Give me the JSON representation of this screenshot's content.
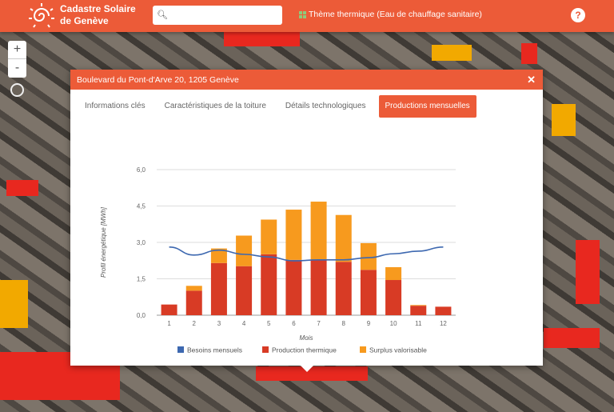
{
  "header": {
    "title_line1": "Cadastre Solaire",
    "title_line2": "de Genève",
    "search_placeholder": "",
    "theme_label": "Thème thermique (Eau de chauffage sanitaire)",
    "help_label": "?"
  },
  "map_controls": {
    "zoom_in": "+",
    "zoom_out": "-"
  },
  "modal": {
    "title": "Boulevard du Pont-d'Arve 20, 1205 Genève",
    "close": "✕",
    "tabs": [
      {
        "label": "Informations clés",
        "active": false
      },
      {
        "label": "Caractéristiques de la toiture",
        "active": false
      },
      {
        "label": "Détails technologiques",
        "active": false
      },
      {
        "label": "Productions mensuelles",
        "active": true
      }
    ]
  },
  "colors": {
    "accent": "#ec5b38",
    "line": "#3d68b0",
    "production": "#d83b25",
    "surplus": "#f79a1e"
  },
  "chart_data": {
    "type": "bar",
    "stacked": true,
    "xlabel": "Mois",
    "ylabel": "Profil énergétique [MWh]",
    "ylim": [
      0,
      6
    ],
    "yticks": [
      "0,0",
      "1,5",
      "3,0",
      "4,5",
      "6,0"
    ],
    "ytick_values": [
      0,
      1.5,
      3,
      4.5,
      6
    ],
    "grid": true,
    "legend": "bottom",
    "categories": [
      "1",
      "2",
      "3",
      "4",
      "5",
      "6",
      "7",
      "8",
      "9",
      "10",
      "11",
      "12"
    ],
    "series": [
      {
        "name": "Besoins mensuels",
        "type": "line",
        "values": [
          2.81,
          2.48,
          2.68,
          2.51,
          2.4,
          2.24,
          2.28,
          2.28,
          2.37,
          2.53,
          2.64,
          2.81
        ]
      },
      {
        "name": "Production thermique",
        "type": "bar",
        "values": [
          0.44,
          1.01,
          2.15,
          2.02,
          2.51,
          2.28,
          2.28,
          2.2,
          1.87,
          1.45,
          0.39,
          0.35
        ]
      },
      {
        "name": "Surplus valorisable",
        "type": "bar",
        "values": [
          0,
          0.2,
          0.6,
          1.26,
          1.43,
          2.07,
          2.4,
          1.93,
          1.1,
          0.53,
          0.03,
          0
        ]
      }
    ]
  }
}
